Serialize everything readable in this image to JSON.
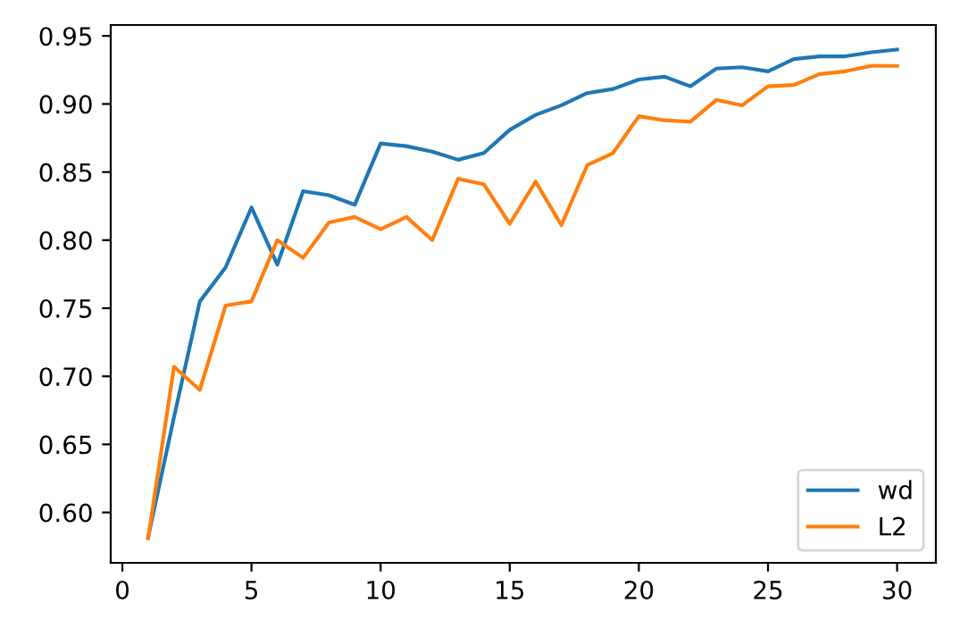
{
  "chart_data": {
    "type": "line",
    "x": [
      1,
      2,
      3,
      4,
      5,
      6,
      7,
      8,
      9,
      10,
      11,
      12,
      13,
      14,
      15,
      16,
      17,
      18,
      19,
      20,
      21,
      22,
      23,
      24,
      25,
      26,
      27,
      28,
      29,
      30
    ],
    "series": [
      {
        "name": "wd",
        "color": "#1f77b4",
        "values": [
          0.582,
          0.67,
          0.755,
          0.78,
          0.824,
          0.782,
          0.836,
          0.833,
          0.826,
          0.871,
          0.869,
          0.865,
          0.859,
          0.864,
          0.881,
          0.892,
          0.899,
          0.908,
          0.911,
          0.918,
          0.92,
          0.913,
          0.926,
          0.927,
          0.924,
          0.933,
          0.935,
          0.935,
          0.938,
          0.94
        ]
      },
      {
        "name": "L2",
        "color": "#ff7f0e",
        "values": [
          0.581,
          0.707,
          0.69,
          0.752,
          0.755,
          0.8,
          0.787,
          0.813,
          0.817,
          0.808,
          0.817,
          0.8,
          0.845,
          0.841,
          0.812,
          0.843,
          0.811,
          0.855,
          0.864,
          0.891,
          0.888,
          0.887,
          0.903,
          0.899,
          0.913,
          0.914,
          0.922,
          0.924,
          0.928,
          0.928
        ]
      }
    ],
    "xlim": [
      -0.45,
      31.5
    ],
    "ylim": [
      0.563,
      0.958
    ],
    "xticks": [
      0,
      5,
      10,
      15,
      20,
      25,
      30
    ],
    "yticks": [
      {
        "value": 0.6,
        "label": "0.60"
      },
      {
        "value": 0.65,
        "label": "0.65"
      },
      {
        "value": 0.7,
        "label": "0.70"
      },
      {
        "value": 0.75,
        "label": "0.75"
      },
      {
        "value": 0.8,
        "label": "0.80"
      },
      {
        "value": 0.85,
        "label": "0.85"
      },
      {
        "value": 0.9,
        "label": "0.90"
      },
      {
        "value": 0.95,
        "label": "0.95"
      }
    ],
    "legend": "lower right",
    "grid": false,
    "marker": "none",
    "line_style": "solid"
  }
}
